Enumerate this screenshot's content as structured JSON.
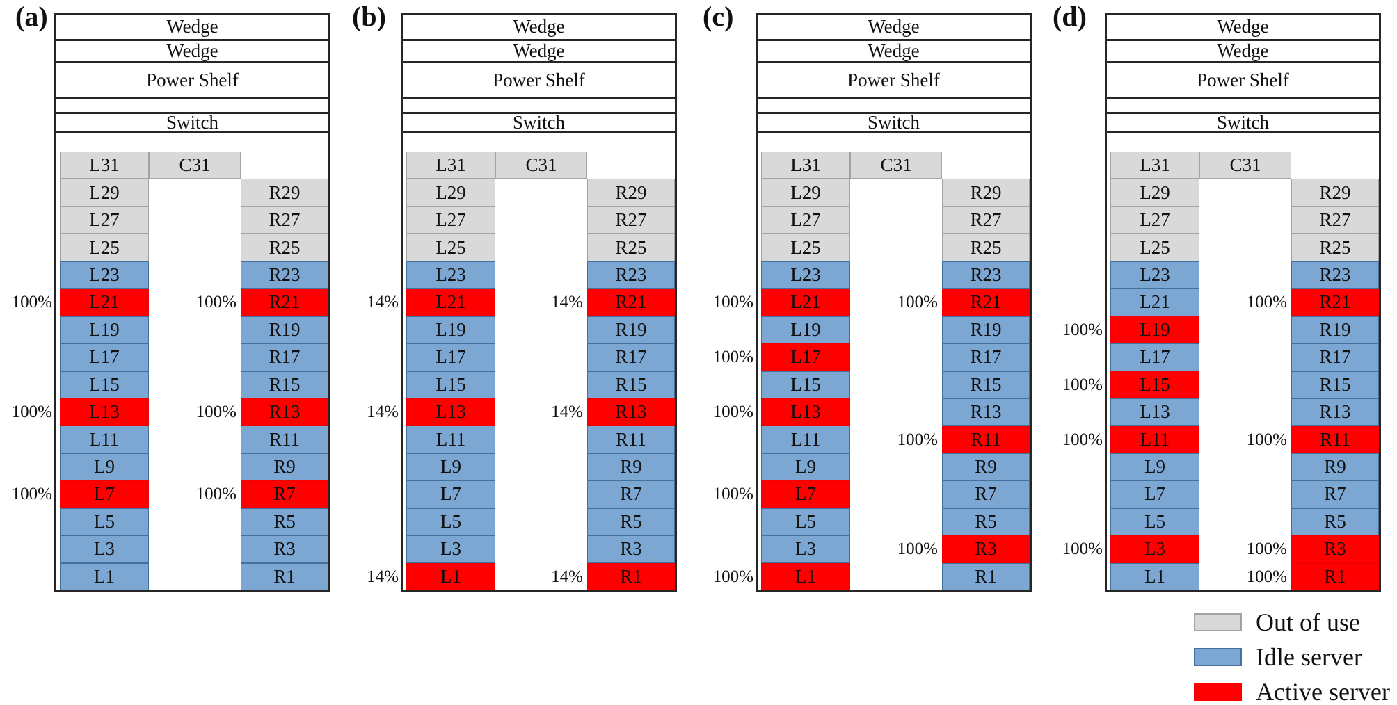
{
  "figure": {
    "rack_headers": [
      "Wedge",
      "Wedge",
      "Power Shelf",
      "",
      "Switch"
    ],
    "colors": {
      "out_of_use": "#d9d9d9",
      "idle_server": "#7da7d3",
      "active_server": "#ff0000",
      "frame": "#262626"
    },
    "legend": [
      {
        "label": "Out of use",
        "state": "out"
      },
      {
        "label": "Idle server",
        "state": "idle"
      },
      {
        "label": "Active server",
        "state": "active"
      }
    ],
    "panels": [
      {
        "label": "(a)",
        "rows": [
          {
            "left": {
              "label": "L31",
              "state": "out"
            },
            "center": {
              "label": "C31",
              "state": "out"
            },
            "right": null
          },
          {
            "left": {
              "label": "L29",
              "state": "out"
            },
            "center": null,
            "right": {
              "label": "R29",
              "state": "out"
            }
          },
          {
            "left": {
              "label": "L27",
              "state": "out"
            },
            "center": null,
            "right": {
              "label": "R27",
              "state": "out"
            }
          },
          {
            "left": {
              "label": "L25",
              "state": "out"
            },
            "center": null,
            "right": {
              "label": "R25",
              "state": "out"
            }
          },
          {
            "left": {
              "label": "L23",
              "state": "idle"
            },
            "center": null,
            "right": {
              "label": "R23",
              "state": "idle"
            }
          },
          {
            "left": {
              "label": "L21",
              "state": "active",
              "pct": "100%"
            },
            "center": null,
            "right": {
              "label": "R21",
              "state": "active",
              "pct": "100%"
            }
          },
          {
            "left": {
              "label": "L19",
              "state": "idle"
            },
            "center": null,
            "right": {
              "label": "R19",
              "state": "idle"
            }
          },
          {
            "left": {
              "label": "L17",
              "state": "idle"
            },
            "center": null,
            "right": {
              "label": "R17",
              "state": "idle"
            }
          },
          {
            "left": {
              "label": "L15",
              "state": "idle"
            },
            "center": null,
            "right": {
              "label": "R15",
              "state": "idle"
            }
          },
          {
            "left": {
              "label": "L13",
              "state": "active",
              "pct": "100%"
            },
            "center": null,
            "right": {
              "label": "R13",
              "state": "active",
              "pct": "100%"
            }
          },
          {
            "left": {
              "label": "L11",
              "state": "idle"
            },
            "center": null,
            "right": {
              "label": "R11",
              "state": "idle"
            }
          },
          {
            "left": {
              "label": "L9",
              "state": "idle"
            },
            "center": null,
            "right": {
              "label": "R9",
              "state": "idle"
            }
          },
          {
            "left": {
              "label": "L7",
              "state": "active",
              "pct": "100%"
            },
            "center": null,
            "right": {
              "label": "R7",
              "state": "active",
              "pct": "100%"
            }
          },
          {
            "left": {
              "label": "L5",
              "state": "idle"
            },
            "center": null,
            "right": {
              "label": "R5",
              "state": "idle"
            }
          },
          {
            "left": {
              "label": "L3",
              "state": "idle"
            },
            "center": null,
            "right": {
              "label": "R3",
              "state": "idle"
            }
          },
          {
            "left": {
              "label": "L1",
              "state": "idle"
            },
            "center": null,
            "right": {
              "label": "R1",
              "state": "idle"
            }
          }
        ]
      },
      {
        "label": "(b)",
        "rows": [
          {
            "left": {
              "label": "L31",
              "state": "out"
            },
            "center": {
              "label": "C31",
              "state": "out"
            },
            "right": null
          },
          {
            "left": {
              "label": "L29",
              "state": "out"
            },
            "center": null,
            "right": {
              "label": "R29",
              "state": "out"
            }
          },
          {
            "left": {
              "label": "L27",
              "state": "out"
            },
            "center": null,
            "right": {
              "label": "R27",
              "state": "out"
            }
          },
          {
            "left": {
              "label": "L25",
              "state": "out"
            },
            "center": null,
            "right": {
              "label": "R25",
              "state": "out"
            }
          },
          {
            "left": {
              "label": "L23",
              "state": "idle"
            },
            "center": null,
            "right": {
              "label": "R23",
              "state": "idle"
            }
          },
          {
            "left": {
              "label": "L21",
              "state": "active",
              "pct": "14%"
            },
            "center": null,
            "right": {
              "label": "R21",
              "state": "active",
              "pct": "14%"
            }
          },
          {
            "left": {
              "label": "L19",
              "state": "idle"
            },
            "center": null,
            "right": {
              "label": "R19",
              "state": "idle"
            }
          },
          {
            "left": {
              "label": "L17",
              "state": "idle"
            },
            "center": null,
            "right": {
              "label": "R17",
              "state": "idle"
            }
          },
          {
            "left": {
              "label": "L15",
              "state": "idle"
            },
            "center": null,
            "right": {
              "label": "R15",
              "state": "idle"
            }
          },
          {
            "left": {
              "label": "L13",
              "state": "active",
              "pct": "14%"
            },
            "center": null,
            "right": {
              "label": "R13",
              "state": "active",
              "pct": "14%"
            }
          },
          {
            "left": {
              "label": "L11",
              "state": "idle"
            },
            "center": null,
            "right": {
              "label": "R11",
              "state": "idle"
            }
          },
          {
            "left": {
              "label": "L9",
              "state": "idle"
            },
            "center": null,
            "right": {
              "label": "R9",
              "state": "idle"
            }
          },
          {
            "left": {
              "label": "L7",
              "state": "idle"
            },
            "center": null,
            "right": {
              "label": "R7",
              "state": "idle"
            }
          },
          {
            "left": {
              "label": "L5",
              "state": "idle"
            },
            "center": null,
            "right": {
              "label": "R5",
              "state": "idle"
            }
          },
          {
            "left": {
              "label": "L3",
              "state": "idle"
            },
            "center": null,
            "right": {
              "label": "R3",
              "state": "idle"
            }
          },
          {
            "left": {
              "label": "L1",
              "state": "active",
              "pct": "14%"
            },
            "center": null,
            "right": {
              "label": "R1",
              "state": "active",
              "pct": "14%"
            }
          }
        ]
      },
      {
        "label": "(c)",
        "rows": [
          {
            "left": {
              "label": "L31",
              "state": "out"
            },
            "center": {
              "label": "C31",
              "state": "out"
            },
            "right": null
          },
          {
            "left": {
              "label": "L29",
              "state": "out"
            },
            "center": null,
            "right": {
              "label": "R29",
              "state": "out"
            }
          },
          {
            "left": {
              "label": "L27",
              "state": "out"
            },
            "center": null,
            "right": {
              "label": "R27",
              "state": "out"
            }
          },
          {
            "left": {
              "label": "L25",
              "state": "out"
            },
            "center": null,
            "right": {
              "label": "R25",
              "state": "out"
            }
          },
          {
            "left": {
              "label": "L23",
              "state": "idle"
            },
            "center": null,
            "right": {
              "label": "R23",
              "state": "idle"
            }
          },
          {
            "left": {
              "label": "L21",
              "state": "active",
              "pct": "100%"
            },
            "center": null,
            "right": {
              "label": "R21",
              "state": "active",
              "pct": "100%"
            }
          },
          {
            "left": {
              "label": "L19",
              "state": "idle"
            },
            "center": null,
            "right": {
              "label": "R19",
              "state": "idle"
            }
          },
          {
            "left": {
              "label": "L17",
              "state": "active",
              "pct": "100%"
            },
            "center": null,
            "right": {
              "label": "R17",
              "state": "idle"
            }
          },
          {
            "left": {
              "label": "L15",
              "state": "idle"
            },
            "center": null,
            "right": {
              "label": "R15",
              "state": "idle"
            }
          },
          {
            "left": {
              "label": "L13",
              "state": "active",
              "pct": "100%"
            },
            "center": null,
            "right": {
              "label": "R13",
              "state": "idle"
            }
          },
          {
            "left": {
              "label": "L11",
              "state": "idle"
            },
            "center": null,
            "right": {
              "label": "R11",
              "state": "active",
              "pct": "100%"
            }
          },
          {
            "left": {
              "label": "L9",
              "state": "idle"
            },
            "center": null,
            "right": {
              "label": "R9",
              "state": "idle"
            }
          },
          {
            "left": {
              "label": "L7",
              "state": "active",
              "pct": "100%"
            },
            "center": null,
            "right": {
              "label": "R7",
              "state": "idle"
            }
          },
          {
            "left": {
              "label": "L5",
              "state": "idle"
            },
            "center": null,
            "right": {
              "label": "R5",
              "state": "idle"
            }
          },
          {
            "left": {
              "label": "L3",
              "state": "idle"
            },
            "center": null,
            "right": {
              "label": "R3",
              "state": "active",
              "pct": "100%"
            }
          },
          {
            "left": {
              "label": "L1",
              "state": "active",
              "pct": "100%"
            },
            "center": null,
            "right": {
              "label": "R1",
              "state": "idle"
            }
          }
        ]
      },
      {
        "label": "(d)",
        "rows": [
          {
            "left": {
              "label": "L31",
              "state": "out"
            },
            "center": {
              "label": "C31",
              "state": "out"
            },
            "right": null
          },
          {
            "left": {
              "label": "L29",
              "state": "out"
            },
            "center": null,
            "right": {
              "label": "R29",
              "state": "out"
            }
          },
          {
            "left": {
              "label": "L27",
              "state": "out"
            },
            "center": null,
            "right": {
              "label": "R27",
              "state": "out"
            }
          },
          {
            "left": {
              "label": "L25",
              "state": "out"
            },
            "center": null,
            "right": {
              "label": "R25",
              "state": "out"
            }
          },
          {
            "left": {
              "label": "L23",
              "state": "idle"
            },
            "center": null,
            "right": {
              "label": "R23",
              "state": "idle"
            }
          },
          {
            "left": {
              "label": "L21",
              "state": "idle"
            },
            "center": null,
            "right": {
              "label": "R21",
              "state": "active",
              "pct": "100%"
            }
          },
          {
            "left": {
              "label": "L19",
              "state": "active",
              "pct": "100%"
            },
            "center": null,
            "right": {
              "label": "R19",
              "state": "idle"
            }
          },
          {
            "left": {
              "label": "L17",
              "state": "idle"
            },
            "center": null,
            "right": {
              "label": "R17",
              "state": "idle"
            }
          },
          {
            "left": {
              "label": "L15",
              "state": "active",
              "pct": "100%"
            },
            "center": null,
            "right": {
              "label": "R15",
              "state": "idle"
            }
          },
          {
            "left": {
              "label": "L13",
              "state": "idle"
            },
            "center": null,
            "right": {
              "label": "R13",
              "state": "idle"
            }
          },
          {
            "left": {
              "label": "L11",
              "state": "active",
              "pct": "100%"
            },
            "center": null,
            "right": {
              "label": "R11",
              "state": "active",
              "pct": "100%"
            }
          },
          {
            "left": {
              "label": "L9",
              "state": "idle"
            },
            "center": null,
            "right": {
              "label": "R9",
              "state": "idle"
            }
          },
          {
            "left": {
              "label": "L7",
              "state": "idle"
            },
            "center": null,
            "right": {
              "label": "R7",
              "state": "idle"
            }
          },
          {
            "left": {
              "label": "L5",
              "state": "idle"
            },
            "center": null,
            "right": {
              "label": "R5",
              "state": "idle"
            }
          },
          {
            "left": {
              "label": "L3",
              "state": "active",
              "pct": "100%"
            },
            "center": null,
            "right": {
              "label": "R3",
              "state": "active",
              "pct": "100%"
            }
          },
          {
            "left": {
              "label": "L1",
              "state": "idle"
            },
            "center": null,
            "right": {
              "label": "R1",
              "state": "active",
              "pct": "100%"
            }
          }
        ]
      }
    ]
  }
}
